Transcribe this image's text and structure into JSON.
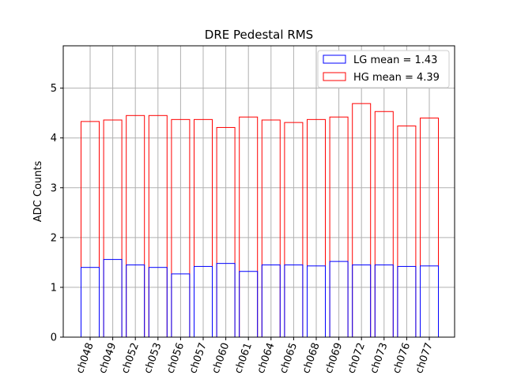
{
  "chart_data": {
    "type": "bar",
    "title": "DRE Pedestal RMS",
    "xlabel": "",
    "ylabel": "ADC Counts",
    "ylim": [
      0,
      5.85
    ],
    "yticks": [
      0,
      1,
      2,
      3,
      4,
      5
    ],
    "grid": true,
    "legend_position": "top-right",
    "categories": [
      "ch048",
      "ch049",
      "ch052",
      "ch053",
      "ch056",
      "ch057",
      "ch060",
      "ch061",
      "ch064",
      "ch065",
      "ch068",
      "ch069",
      "ch072",
      "ch073",
      "ch076",
      "ch077"
    ],
    "series": [
      {
        "name": "LG mean = 1.43",
        "color": "#0000ff",
        "values": [
          1.4,
          1.56,
          1.45,
          1.4,
          1.27,
          1.42,
          1.48,
          1.32,
          1.45,
          1.45,
          1.43,
          1.52,
          1.45,
          1.45,
          1.42,
          1.43
        ]
      },
      {
        "name": "HG mean = 4.39",
        "color": "#ff0000",
        "values": [
          4.33,
          4.36,
          4.45,
          4.45,
          4.37,
          4.37,
          4.21,
          4.42,
          4.36,
          4.31,
          4.37,
          4.42,
          4.69,
          4.53,
          4.24,
          4.4
        ]
      }
    ]
  }
}
